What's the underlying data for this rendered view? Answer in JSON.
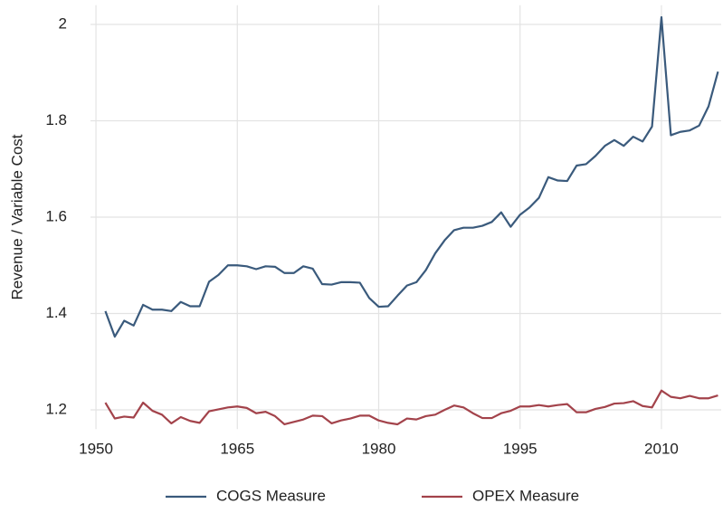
{
  "chart_data": {
    "type": "line",
    "y_label": "Revenue / Variable Cost",
    "x": [
      1951,
      1952,
      1953,
      1954,
      1955,
      1956,
      1957,
      1958,
      1959,
      1960,
      1961,
      1962,
      1963,
      1964,
      1965,
      1966,
      1967,
      1968,
      1969,
      1970,
      1971,
      1972,
      1973,
      1974,
      1975,
      1976,
      1977,
      1978,
      1979,
      1980,
      1981,
      1982,
      1983,
      1984,
      1985,
      1986,
      1987,
      1988,
      1989,
      1990,
      1991,
      1992,
      1993,
      1994,
      1995,
      1996,
      1997,
      1998,
      1999,
      2000,
      2001,
      2002,
      2003,
      2004,
      2005,
      2006,
      2007,
      2008,
      2009,
      2010,
      2011,
      2012,
      2013,
      2014,
      2015,
      2016
    ],
    "series": [
      {
        "name": "COGS Measure",
        "color": "#3a5a7c",
        "values": [
          1.405,
          1.352,
          1.385,
          1.375,
          1.418,
          1.408,
          1.408,
          1.405,
          1.424,
          1.415,
          1.415,
          1.466,
          1.48,
          1.5,
          1.5,
          1.498,
          1.492,
          1.498,
          1.497,
          1.484,
          1.484,
          1.498,
          1.493,
          1.461,
          1.46,
          1.465,
          1.465,
          1.464,
          1.432,
          1.414,
          1.415,
          1.437,
          1.458,
          1.465,
          1.49,
          1.525,
          1.552,
          1.573,
          1.578,
          1.578,
          1.582,
          1.59,
          1.61,
          1.58,
          1.605,
          1.62,
          1.64,
          1.683,
          1.676,
          1.675,
          1.707,
          1.71,
          1.727,
          1.748,
          1.76,
          1.748,
          1.767,
          1.757,
          1.788,
          2.015,
          1.77,
          1.777,
          1.78,
          1.79,
          1.83,
          1.902
        ]
      },
      {
        "name": "OPEX Measure",
        "color": "#a3434b",
        "values": [
          1.215,
          1.182,
          1.186,
          1.184,
          1.215,
          1.198,
          1.19,
          1.172,
          1.185,
          1.177,
          1.173,
          1.197,
          1.201,
          1.205,
          1.207,
          1.204,
          1.193,
          1.196,
          1.187,
          1.17,
          1.175,
          1.18,
          1.188,
          1.187,
          1.172,
          1.178,
          1.182,
          1.188,
          1.188,
          1.178,
          1.173,
          1.17,
          1.182,
          1.18,
          1.187,
          1.19,
          1.2,
          1.209,
          1.205,
          1.193,
          1.183,
          1.183,
          1.193,
          1.198,
          1.207,
          1.207,
          1.21,
          1.207,
          1.21,
          1.212,
          1.195,
          1.195,
          1.202,
          1.206,
          1.213,
          1.214,
          1.218,
          1.208,
          1.205,
          1.24,
          1.227,
          1.224,
          1.229,
          1.224,
          1.224,
          1.23
        ]
      }
    ],
    "xlim": [
      1949.42,
      2016.34
    ],
    "xticks": [
      1950,
      1965,
      1980,
      1995,
      2010
    ],
    "ylim": [
      1.16,
      2.04
    ],
    "yticks": [
      1.2,
      1.4,
      1.6,
      1.8,
      2
    ],
    "grid": true,
    "legend": "bottom"
  }
}
